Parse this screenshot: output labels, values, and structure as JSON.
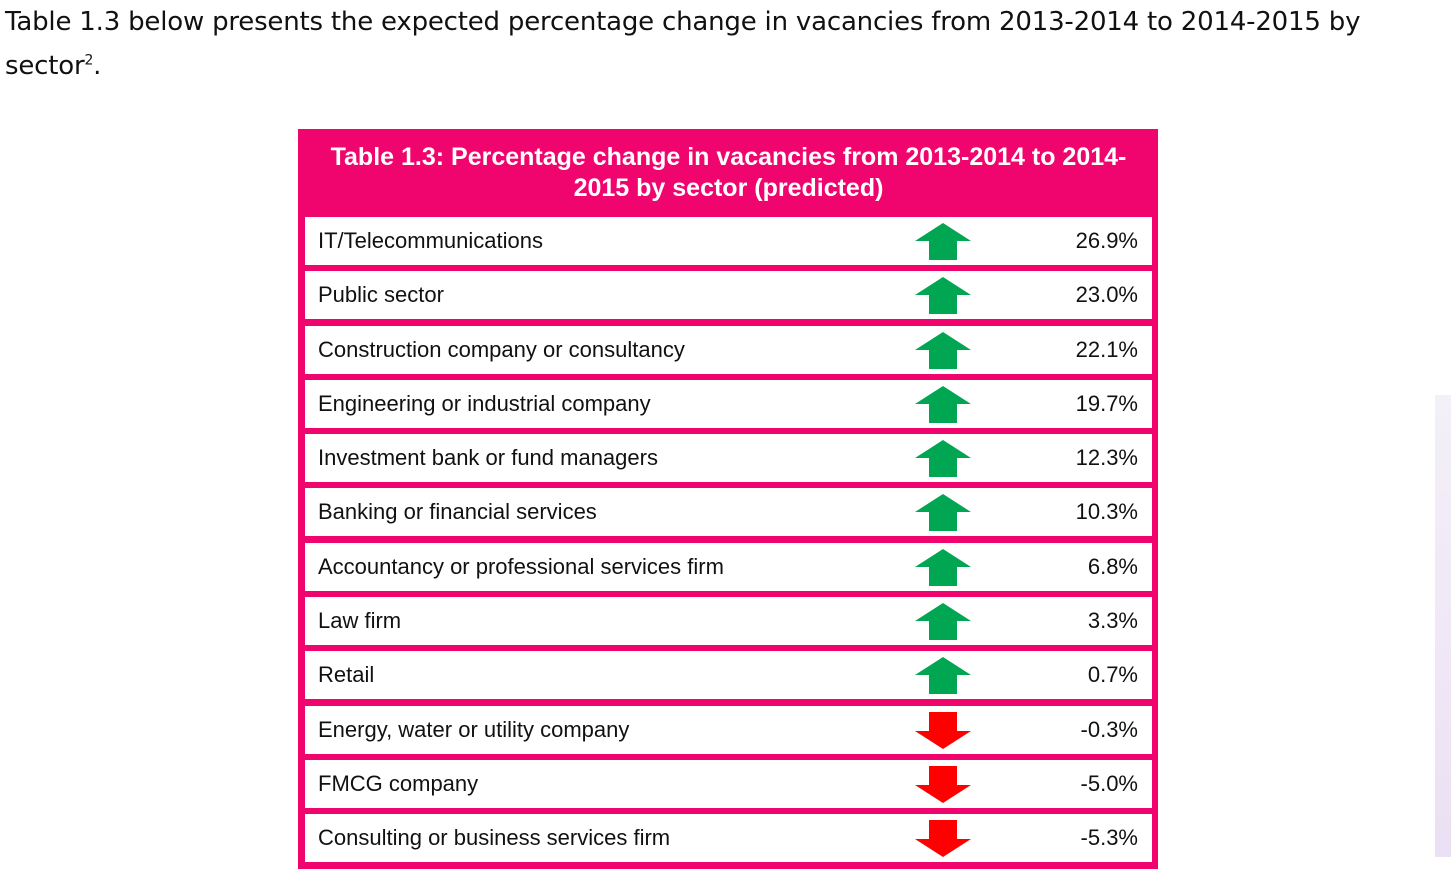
{
  "intro": {
    "text": "Table 1.3 below presents the expected percentage change in vacancies from 2013-2014 to 2014-2015 by sector",
    "footnote": "2",
    "end": "."
  },
  "table": {
    "title": "Table 1.3: Percentage change in vacancies from 2013-2014 to 2014-2015 by sector (predicted)",
    "colors": {
      "border": "#f0046e",
      "up": "#00a651",
      "down": "#ff0000"
    },
    "rows": [
      {
        "sector": "IT/Telecommunications",
        "direction": "up",
        "value": "26.9%"
      },
      {
        "sector": "Public sector",
        "direction": "up",
        "value": "23.0%"
      },
      {
        "sector": "Construction company or consultancy",
        "direction": "up",
        "value": "22.1%"
      },
      {
        "sector": "Engineering or industrial company",
        "direction": "up",
        "value": "19.7%"
      },
      {
        "sector": "Investment bank or fund managers",
        "direction": "up",
        "value": "12.3%"
      },
      {
        "sector": "Banking or financial services",
        "direction": "up",
        "value": "10.3%"
      },
      {
        "sector": "Accountancy or professional services firm",
        "direction": "up",
        "value": "6.8%"
      },
      {
        "sector": "Law firm",
        "direction": "up",
        "value": "3.3%"
      },
      {
        "sector": "Retail",
        "direction": "up",
        "value": "0.7%"
      },
      {
        "sector": "Energy, water or utility company",
        "direction": "down",
        "value": "-0.3%"
      },
      {
        "sector": "FMCG company",
        "direction": "down",
        "value": "-5.0%"
      },
      {
        "sector": "Consulting or business services firm",
        "direction": "down",
        "value": "-5.3%"
      }
    ]
  }
}
